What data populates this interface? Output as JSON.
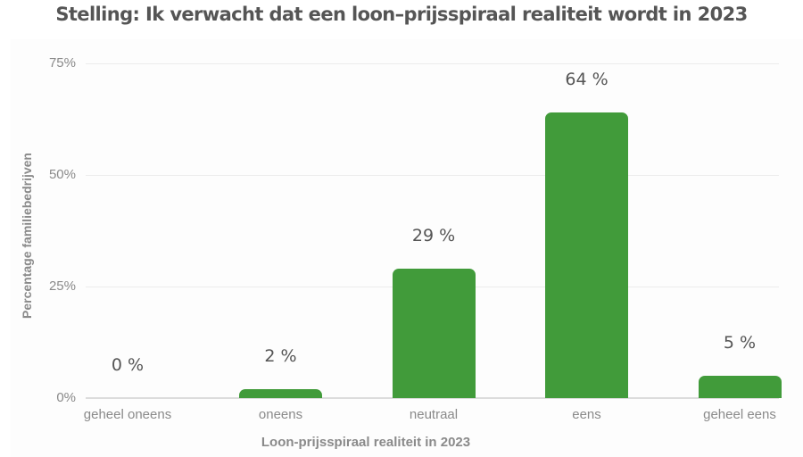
{
  "chart_data": {
    "type": "bar",
    "title": "Stelling: Ik verwacht dat een loon–prijsspiraal realiteit wordt in 2023",
    "xlabel": "Loon-prijsspiraal realiteit in 2023",
    "ylabel": "Percentage familiebedrijven",
    "categories": [
      "geheel oneens",
      "oneens",
      "neutraal",
      "eens",
      "geheel eens"
    ],
    "values": [
      0,
      2,
      29,
      64,
      5
    ],
    "data_labels": [
      "0 %",
      "2 %",
      "29 %",
      "64 %",
      "5 %"
    ],
    "ylim": [
      0,
      75
    ],
    "yticks": [
      "0%",
      "25%",
      "50%",
      "75%"
    ],
    "grid": true,
    "legend": null,
    "bar_color": "#419b3a"
  }
}
